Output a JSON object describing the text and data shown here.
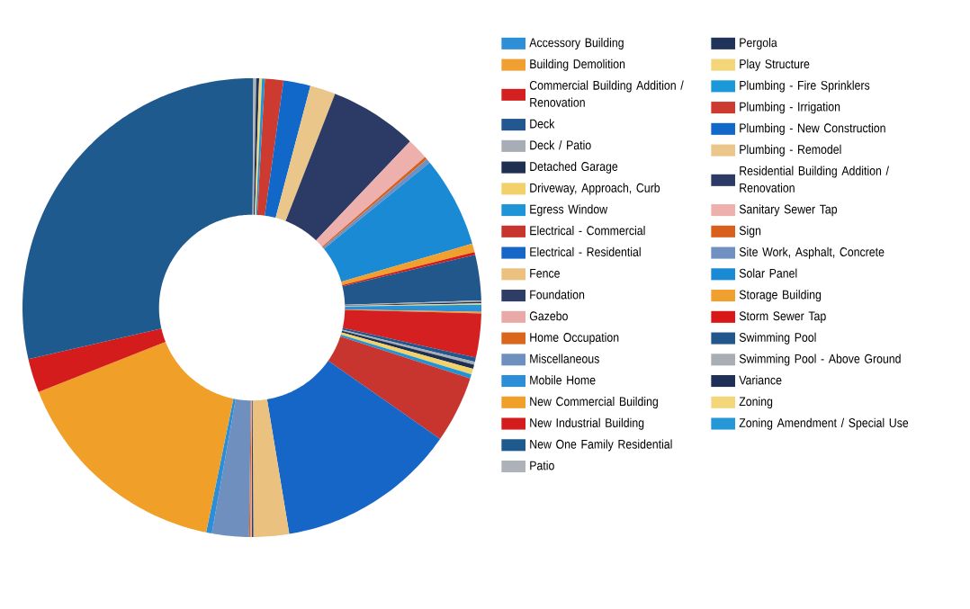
{
  "chart_data": {
    "type": "donut",
    "categories": [
      "Accessory Building",
      "Building Demolition",
      "Commercial Building Addition / Renovation",
      "Deck",
      "Deck / Patio",
      "Detached Garage",
      "Driveway, Approach, Curb",
      "Egress Window",
      "Electrical - Commercial",
      "Electrical - Residential",
      "Fence",
      "Foundation",
      "Gazebo",
      "Home Occupation",
      "Miscellaneous",
      "Mobile Home",
      "New Commercial Building",
      "New Industrial Building",
      "New One Family Residential",
      "Patio",
      "Pergola",
      "Play Structure",
      "Plumbing - Fire Sprinklers",
      "Plumbing - Irrigation",
      "Plumbing - New Construction",
      "Plumbing - Remodel",
      "Residential Building  Addition / Renovation",
      "Sanitary Sewer Tap",
      "Sign",
      "Site Work, Asphalt, Concrete",
      "Solar Panel",
      "Storage Building",
      "Storm Sewer Tap",
      "Swimming Pool",
      "Swimming Pool - Above Ground",
      "Variance",
      "Zoning",
      "Zoning Amendment / Special Use"
    ],
    "values": [
      0.3,
      0.1,
      3.1,
      0.3,
      0.2,
      0.3,
      0.4,
      0.3,
      4.7,
      12.7,
      2.5,
      0.1,
      0.1,
      0.1,
      2.6,
      0.4,
      15.8,
      2.4,
      28.7,
      0.2,
      0.2,
      0.2,
      0.2,
      1.3,
      1.9,
      1.8,
      6.2,
      1.5,
      0.2,
      0.3,
      6.4,
      0.6,
      0.2,
      3.2,
      0.1,
      0.1,
      0.1,
      0.2
    ],
    "colors": [
      "#2e8fd6",
      "#f0a030",
      "#d42020",
      "#22588f",
      "#a8adb5",
      "#1e2f4f",
      "#f2d06a",
      "#1f94d6",
      "#c8352e",
      "#1666c8",
      "#ebc17f",
      "#2d3d66",
      "#e9a9a6",
      "#d9661a",
      "#6f8fbf",
      "#2d8ed8",
      "#f0a028",
      "#d41c1c",
      "#1f5a8f",
      "#adb1b8",
      "#20345a",
      "#f3d57a",
      "#1b98d8",
      "#cc3a30",
      "#1268c8",
      "#ebc68a",
      "#2c3a66",
      "#eeb0ad",
      "#d8601c",
      "#6f90c0",
      "#1a8ad4",
      "#f0a02e",
      "#d81818",
      "#22578c",
      "#a9adb4",
      "#1e3055",
      "#f3d67a",
      "#2596d6"
    ],
    "legend": "right"
  }
}
